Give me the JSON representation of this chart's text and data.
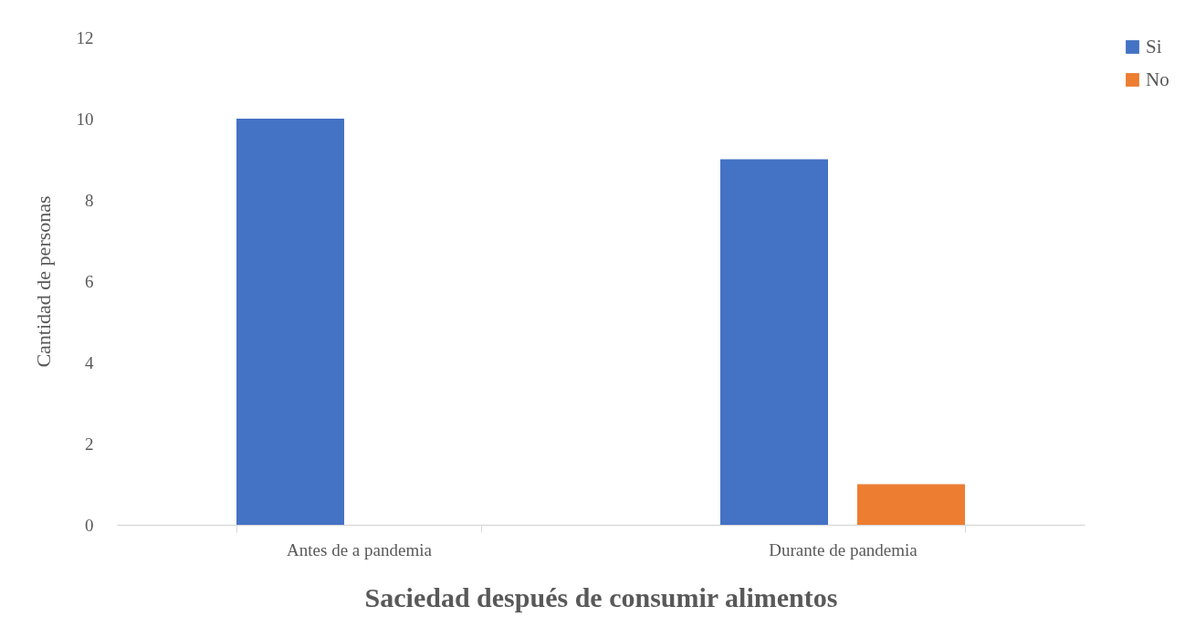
{
  "chart_data": {
    "type": "bar",
    "xlabel": "Saciedad después de consumir alimentos",
    "ylabel": "Cantidad de personas",
    "categories": [
      "Antes de a pandemia",
      "Durante de pandemia"
    ],
    "series": [
      {
        "name": "Si",
        "color": "#4472c4",
        "values": [
          10,
          9
        ]
      },
      {
        "name": "No",
        "color": "#ed7d31",
        "values": [
          0,
          1
        ]
      }
    ],
    "ylim": [
      0,
      12
    ],
    "yticks": [
      0,
      2,
      4,
      6,
      8,
      10,
      12
    ],
    "grid": false,
    "legend": "right"
  }
}
